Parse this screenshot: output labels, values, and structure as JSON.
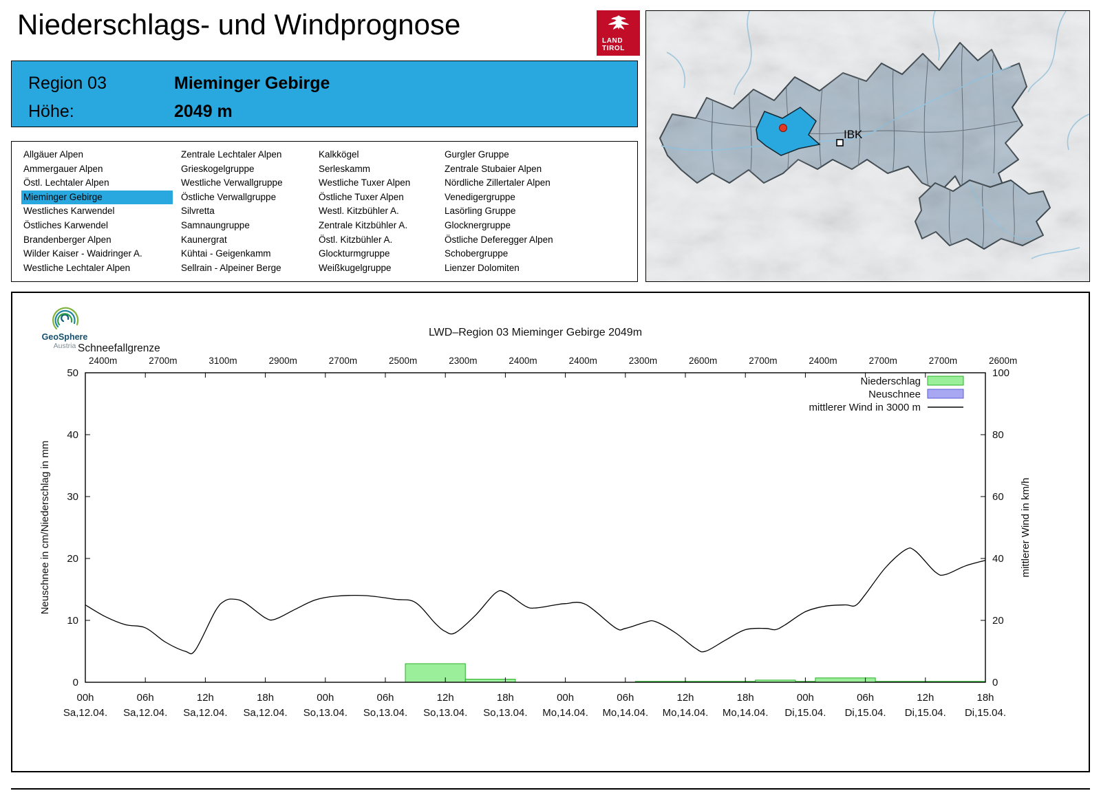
{
  "header": {
    "title": "Niederschlags- und Windprognose",
    "logo": {
      "line1": "LAND",
      "line2": "TIROL"
    }
  },
  "region_header": {
    "region_label": "Region 03",
    "region_name": "Mieminger Gebirge",
    "elevation_label": "Höhe:",
    "elevation_value": "2049 m",
    "background": "#29A8E0"
  },
  "region_list": {
    "selected": "Mieminger Gebirge",
    "columns": [
      [
        "Allgäuer Alpen",
        "Ammergauer Alpen",
        "Östl. Lechtaler Alpen",
        "Mieminger Gebirge",
        "Westliches Karwendel",
        "Östliches Karwendel",
        "Brandenberger Alpen",
        "Wilder Kaiser - Waidringer A.",
        "Westliche Lechtaler Alpen"
      ],
      [
        "Zentrale Lechtaler Alpen",
        "Grieskogelgruppe",
        "Westliche Verwallgruppe",
        "Östliche Verwallgruppe",
        "Silvretta",
        "Samnaungruppe",
        "Kaunergrat",
        "Kühtai - Geigenkamm",
        "Sellrain - Alpeiner Berge"
      ],
      [
        "Kalkkögel",
        "Serleskamm",
        "Westliche Tuxer Alpen",
        "Östliche Tuxer Alpen",
        "Westl. Kitzbühler A.",
        "Zentrale Kitzbühler A.",
        "Östl. Kitzbühler A.",
        "Glockturmgruppe",
        "Weißkugelgruppe"
      ],
      [
        "Gurgler Gruppe",
        "Zentrale Stubaier Alpen",
        "Nördliche Zillertaler Alpen",
        "Venedigergruppe",
        "Lasörling Gruppe",
        "Glocknergruppe",
        "Östliche Deferegger Alpen",
        "Schobergruppe",
        "Lienzer Dolomiten"
      ]
    ]
  },
  "map": {
    "city_label": "IBK",
    "highlight_color": "#29A8E0"
  },
  "chart": {
    "logo_name": "GeoSphere",
    "logo_country": "Austria"
  },
  "chart_data": {
    "type": "bar+line",
    "title": "LWD–Region 03 Mieminger Gebirge 2049m",
    "snowline": {
      "label": "Schneefallgrenze",
      "values": [
        "2400m",
        "2700m",
        "3100m",
        "2900m",
        "2700m",
        "2500m",
        "2300m",
        "2400m",
        "2400m",
        "2300m",
        "2600m",
        "2700m",
        "2400m",
        "2700m",
        "2700m",
        "2600m"
      ]
    },
    "x_hours_range": [
      0,
      90
    ],
    "x_ticks": [
      {
        "hour": 0,
        "time": "00h",
        "date": "Sa,12.04."
      },
      {
        "hour": 6,
        "time": "06h",
        "date": "Sa,12.04."
      },
      {
        "hour": 12,
        "time": "12h",
        "date": "Sa,12.04."
      },
      {
        "hour": 18,
        "time": "18h",
        "date": "Sa,12.04."
      },
      {
        "hour": 24,
        "time": "00h",
        "date": "So,13.04."
      },
      {
        "hour": 30,
        "time": "06h",
        "date": "So,13.04."
      },
      {
        "hour": 36,
        "time": "12h",
        "date": "So,13.04."
      },
      {
        "hour": 42,
        "time": "18h",
        "date": "So,13.04."
      },
      {
        "hour": 48,
        "time": "00h",
        "date": "Mo,14.04."
      },
      {
        "hour": 54,
        "time": "06h",
        "date": "Mo,14.04."
      },
      {
        "hour": 60,
        "time": "12h",
        "date": "Mo,14.04."
      },
      {
        "hour": 66,
        "time": "18h",
        "date": "Mo,14.04."
      },
      {
        "hour": 72,
        "time": "00h",
        "date": "Di,15.04."
      },
      {
        "hour": 78,
        "time": "06h",
        "date": "Di,15.04."
      },
      {
        "hour": 84,
        "time": "12h",
        "date": "Di,15.04."
      },
      {
        "hour": 90,
        "time": "18h",
        "date": "Di,15.04."
      }
    ],
    "y_left": {
      "label": "Neuschnee in cm/Niederschlag in mm",
      "min": 0,
      "max": 50,
      "ticks": [
        0,
        10,
        20,
        30,
        40,
        50
      ]
    },
    "y_right": {
      "label": "mittlerer Wind in km/h",
      "min": 0,
      "max": 100,
      "ticks": [
        0,
        20,
        40,
        60,
        80,
        100
      ]
    },
    "legend": [
      {
        "label": "Niederschlag",
        "type": "box",
        "fill": "#9BEF9B",
        "stroke": "#27B227"
      },
      {
        "label": "Neuschnee",
        "type": "box",
        "fill": "#A8A8F2",
        "stroke": "#5B5BD6"
      },
      {
        "label": "mittlerer Wind in 3000 m",
        "type": "line",
        "stroke": "#000000"
      }
    ],
    "colors": {
      "precip_fill": "#9BEF9B",
      "precip_stroke": "#27B227",
      "neuschnee_fill": "#A8A8F2",
      "neuschnee_stroke": "#5B5BD6",
      "wind_line": "#000000"
    },
    "wind_series": {
      "name": "mittlerer Wind in 3000 m",
      "axis": "right",
      "unit": "km/h",
      "points": [
        [
          0,
          25.0
        ],
        [
          2,
          21.2
        ],
        [
          4,
          18.6
        ],
        [
          6,
          17.6
        ],
        [
          8,
          13.0
        ],
        [
          10,
          10.0
        ],
        [
          11,
          10.4
        ],
        [
          13,
          23.0
        ],
        [
          14,
          26.4
        ],
        [
          15,
          26.8
        ],
        [
          16,
          25.6
        ],
        [
          18,
          20.8
        ],
        [
          19,
          20.4
        ],
        [
          21,
          23.6
        ],
        [
          23,
          26.6
        ],
        [
          25,
          27.8
        ],
        [
          28,
          28.0
        ],
        [
          31,
          26.8
        ],
        [
          33,
          25.8
        ],
        [
          35,
          19.0
        ],
        [
          36,
          16.4
        ],
        [
          37,
          16.0
        ],
        [
          39,
          21.6
        ],
        [
          41,
          28.8
        ],
        [
          42,
          29.0
        ],
        [
          44,
          24.6
        ],
        [
          45,
          24.0
        ],
        [
          47,
          25.0
        ],
        [
          48,
          25.4
        ],
        [
          50,
          25.2
        ],
        [
          53,
          17.6
        ],
        [
          54,
          17.4
        ],
        [
          56,
          19.4
        ],
        [
          57,
          19.6
        ],
        [
          59,
          16.0
        ],
        [
          61,
          11.0
        ],
        [
          62,
          10.0
        ],
        [
          64,
          13.6
        ],
        [
          66,
          17.0
        ],
        [
          68,
          17.4
        ],
        [
          69,
          17.0
        ],
        [
          70,
          18.6
        ],
        [
          72,
          22.8
        ],
        [
          74,
          24.6
        ],
        [
          76,
          25.0
        ],
        [
          77,
          24.8
        ],
        [
          78,
          28.4
        ],
        [
          80,
          37.0
        ],
        [
          82,
          42.8
        ],
        [
          83,
          42.4
        ],
        [
          85,
          35.6
        ],
        [
          86,
          34.8
        ],
        [
          88,
          37.6
        ],
        [
          90,
          39.4
        ]
      ]
    },
    "precip_segments": [
      {
        "from": 32,
        "to": 38,
        "mm": 3.0
      },
      {
        "from": 38,
        "to": 43,
        "mm": 0.5
      },
      {
        "from": 55,
        "to": 67,
        "mm": 0.15
      },
      {
        "from": 67,
        "to": 71,
        "mm": 0.35
      },
      {
        "from": 71,
        "to": 73,
        "mm": 0.15
      },
      {
        "from": 73,
        "to": 79,
        "mm": 0.7
      },
      {
        "from": 79,
        "to": 90,
        "mm": 0.15
      }
    ],
    "neuschnee_segments": []
  }
}
